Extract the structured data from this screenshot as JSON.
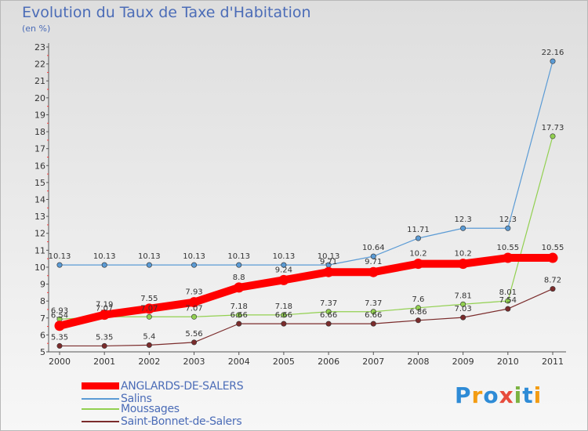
{
  "title": "Evolution du Taux de Taxe d'Habitation",
  "unit_label": "(en %)",
  "logo_text": "Proxiti",
  "chart_data": {
    "type": "line",
    "title": "Evolution du Taux de Taxe d'Habitation",
    "ylabel": "(en %)",
    "xlabel": "",
    "x": [
      "2000",
      "2001",
      "2002",
      "2003",
      "2004",
      "2005",
      "2006",
      "2007",
      "2008",
      "2009",
      "2010",
      "2011"
    ],
    "yticks": [
      5,
      6,
      7,
      8,
      9,
      10,
      11,
      12,
      13,
      14,
      15,
      16,
      17,
      18,
      19,
      20,
      21,
      22,
      23
    ],
    "ylim": [
      5,
      23
    ],
    "grid": false,
    "legend_placement": "bottom-left",
    "series": [
      {
        "name": "ANGLARDS-DE-SALERS",
        "color": "#ff0000",
        "values": [
          6.54,
          7.19,
          7.55,
          7.93,
          8.8,
          9.24,
          9.71,
          9.71,
          10.2,
          10.2,
          10.55,
          10.55
        ],
        "labels": [
          "6.54",
          "7.19",
          "7.55",
          "7.93",
          "8.8",
          "9.24",
          "9.71",
          "9.71",
          "10.2",
          "10.2",
          "10.55",
          "10.55"
        ]
      },
      {
        "name": "Salins",
        "color": "#5b9bd5",
        "values": [
          10.13,
          10.13,
          10.13,
          10.13,
          10.13,
          10.13,
          10.13,
          10.64,
          11.71,
          12.3,
          12.3,
          22.16
        ],
        "labels": [
          "10.13",
          "10.13",
          "10.13",
          "10.13",
          "10.13",
          "10.13",
          "10.13",
          "10.64",
          "11.71",
          "12.3",
          "12.3",
          "22.16"
        ]
      },
      {
        "name": "Moussages",
        "color": "#92d050",
        "values": [
          6.93,
          7.07,
          7.07,
          7.07,
          7.18,
          7.18,
          7.37,
          7.37,
          7.6,
          7.81,
          8.01,
          17.73
        ],
        "labels": [
          "6.93",
          "7.07",
          "7.07",
          "7.07",
          "7.18",
          "7.18",
          "7.37",
          "7.37",
          "7.6",
          "7.81",
          "8.01",
          "17.73"
        ]
      },
      {
        "name": "Saint-Bonnet-de-Salers",
        "color": "#7b2c2c",
        "values": [
          5.35,
          5.35,
          5.4,
          5.56,
          6.66,
          6.66,
          6.66,
          6.66,
          6.86,
          7.03,
          7.54,
          8.72
        ],
        "labels": [
          "5.35",
          "5.35",
          "5.4",
          "5.56",
          "6.66",
          "6.66",
          "6.66",
          "6.66",
          "6.86",
          "7.03",
          "7.54",
          "8.72"
        ]
      }
    ]
  }
}
